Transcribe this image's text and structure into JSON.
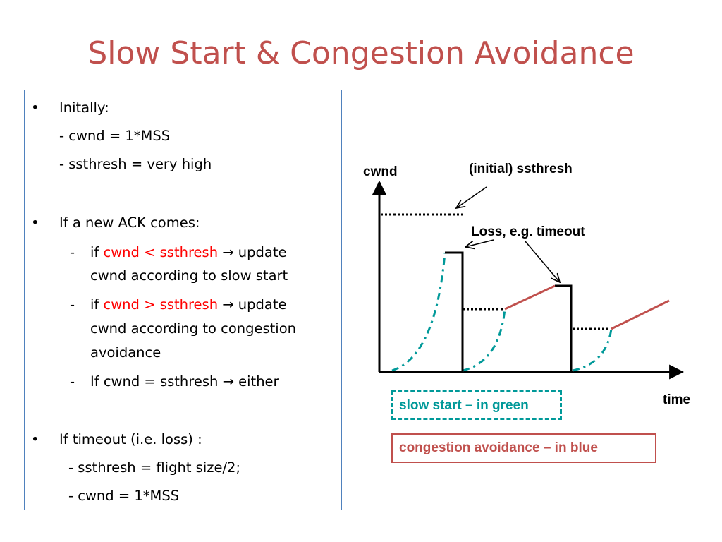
{
  "slide": {
    "title": "Slow Start & Congestion Avoidance"
  },
  "text": {
    "b1_label": "Initally:",
    "b1_l1": "- cwnd = 1*MSS",
    "b1_l2": "- ssthresh = very high",
    "b2_label": "If a new ACK comes:",
    "b2_s1_pre": "if ",
    "b2_s1_red": "cwnd < ssthresh",
    "b2_s1_post": " update",
    "b2_s1_l2": "cwnd according to slow start",
    "b2_s2_pre": "if ",
    "b2_s2_red": "cwnd > ssthresh",
    "b2_s2_post": " update",
    "b2_s2_l2": "cwnd according to congestion",
    "b2_s2_l3": "avoidance",
    "b2_s3_pre": "If cwnd = ssthresh ",
    "b2_s3_post": " either",
    "b3_label": "If timeout (i.e. loss) :",
    "b3_l1": "- ssthresh = flight size/2;",
    "b3_l2": "- cwnd = 1*MSS",
    "bullet": "•",
    "dash": "-",
    "arrow": "→"
  },
  "diagram": {
    "y_axis_label": "cwnd",
    "x_axis_label": "time",
    "annot_ssthresh": "(initial) ssthresh",
    "annot_loss": "Loss, e.g. timeout",
    "legend_ss": "slow start – in green",
    "legend_ca": "congestion avoidance – in blue",
    "colors": {
      "title": "#c0504d",
      "slow_start": "#009999",
      "congestion_avoidance": "#c0504d",
      "emphasis": "#ff0000",
      "textbox_border": "#4f81bd"
    }
  }
}
